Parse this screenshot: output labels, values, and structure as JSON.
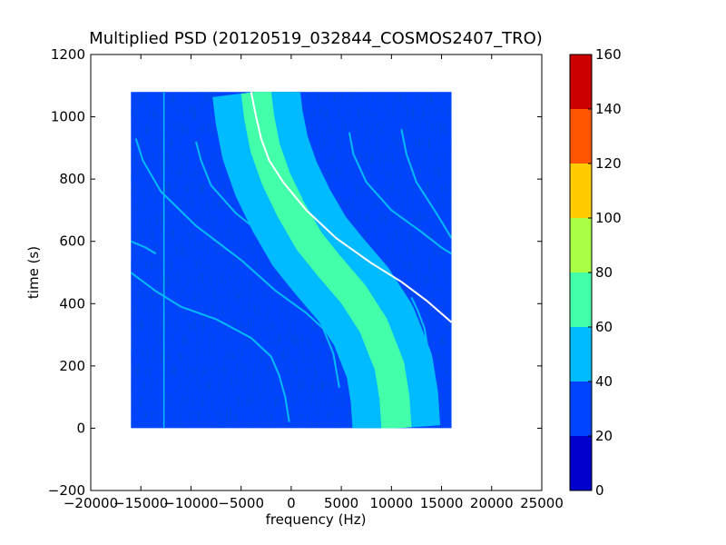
{
  "chart_data": {
    "type": "heatmap",
    "title": "Multiplied PSD (20120519_032844_COSMOS2407_TRO)",
    "xlabel": "frequency (Hz)",
    "ylabel": "time (s)",
    "xlim": [
      -20000,
      25000
    ],
    "ylim": [
      -200,
      1200
    ],
    "xticks": [
      -20000,
      -15000,
      -10000,
      -5000,
      0,
      5000,
      10000,
      15000,
      20000,
      25000
    ],
    "yticks": [
      -200,
      0,
      200,
      400,
      600,
      800,
      1000,
      1200
    ],
    "data_extent": {
      "x": [
        -16000,
        16000
      ],
      "y": [
        0,
        1080
      ]
    },
    "colorbar": {
      "levels": [
        0,
        20,
        40,
        60,
        80,
        100,
        120,
        140,
        160
      ],
      "colors": [
        "#0000cc",
        "#0044ff",
        "#00bbff",
        "#44ffaa",
        "#aaff44",
        "#ffcc00",
        "#ff5500",
        "#cc0000"
      ]
    },
    "background_level": 25,
    "main_doppler_band": {
      "label": "broad signal band, centre frequency vs time",
      "center_x": [
        -3500,
        -3200,
        -2600,
        -1500,
        0,
        1800,
        3800,
        6200,
        8200,
        9800,
        10300,
        10500
      ],
      "y": [
        1080,
        1000,
        900,
        800,
        700,
        600,
        520,
        430,
        330,
        200,
        100,
        0
      ],
      "core_width_hz": 3000,
      "outer_width_hz": 7000,
      "core_level": 75,
      "outer_level": 55
    },
    "white_trace": {
      "x": [
        -4000,
        -3500,
        -3000,
        -2200,
        -800,
        1500,
        4500,
        8000,
        11000,
        13500,
        16000
      ],
      "y": [
        1080,
        1000,
        930,
        860,
        790,
        700,
        610,
        530,
        470,
        410,
        340
      ]
    },
    "weak_traces": [
      {
        "x": [
          -16000,
          -13500,
          -11000,
          -7500,
          -4000,
          -2000,
          -1200,
          -600,
          -200
        ],
        "y": [
          500,
          440,
          390,
          350,
          290,
          230,
          170,
          100,
          20
        ]
      },
      {
        "x": [
          -15500,
          -14800,
          -13000,
          -9500,
          -5000,
          -1500,
          1500,
          3200,
          4200,
          4800
        ],
        "y": [
          930,
          860,
          760,
          650,
          540,
          440,
          370,
          320,
          240,
          130
        ]
      },
      {
        "x": [
          -9500,
          -9000,
          -8000,
          -5500,
          -2000
        ],
        "y": [
          920,
          860,
          780,
          690,
          600
        ]
      },
      {
        "x": [
          5800,
          6200,
          7500,
          10000,
          13000,
          15000,
          16000
        ],
        "y": [
          950,
          880,
          790,
          700,
          630,
          580,
          560
        ]
      },
      {
        "x": [
          11000,
          11500,
          12500,
          14500,
          16000
        ],
        "y": [
          960,
          880,
          790,
          690,
          610
        ]
      },
      {
        "x": [
          12000,
          12600,
          13300,
          13800,
          14000
        ],
        "y": [
          420,
          380,
          320,
          220,
          90
        ]
      },
      {
        "x": [
          -16000,
          -14500,
          -13500
        ],
        "y": [
          600,
          580,
          560
        ]
      }
    ],
    "vertical_line_x": -12700,
    "grid": false,
    "legend": "none"
  }
}
